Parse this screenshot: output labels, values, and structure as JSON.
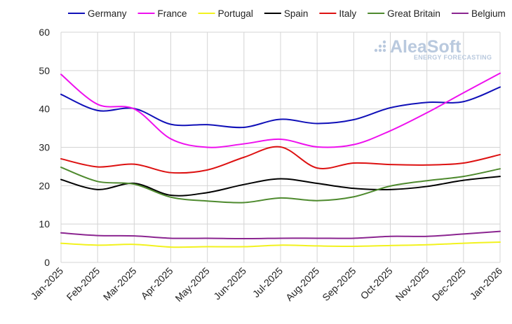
{
  "chart_data": {
    "type": "line",
    "categories": [
      "Jan-2025",
      "Feb-2025",
      "Mar-2025",
      "Apr-2025",
      "May-2025",
      "Jun-2025",
      "Jul-2025",
      "Aug-2025",
      "Sep-2025",
      "Oct-2025",
      "Nov-2025",
      "Dec-2025",
      "Jan-2026"
    ],
    "ylim": [
      0,
      60
    ],
    "yticks": [
      0,
      10,
      20,
      30,
      40,
      50,
      60
    ],
    "grid": true,
    "legend_position": "top",
    "series": [
      {
        "name": "Germany",
        "color": "#1010b8",
        "values": [
          43.8,
          39.6,
          40.1,
          36.0,
          35.9,
          35.2,
          37.3,
          36.2,
          37.2,
          40.3,
          41.7,
          41.9,
          45.7
        ]
      },
      {
        "name": "France",
        "color": "#ee10ee",
        "values": [
          49.0,
          41.2,
          40.0,
          32.2,
          30.0,
          30.9,
          32.1,
          30.1,
          30.7,
          34.3,
          39.0,
          44.2,
          49.3
        ]
      },
      {
        "name": "Portugal",
        "color": "#f2f21e",
        "values": [
          5.0,
          4.5,
          4.7,
          4.0,
          4.1,
          4.1,
          4.5,
          4.3,
          4.2,
          4.4,
          4.6,
          5.0,
          5.3
        ]
      },
      {
        "name": "Spain",
        "color": "#000000",
        "values": [
          21.6,
          19.0,
          20.6,
          17.5,
          18.2,
          20.3,
          21.8,
          20.6,
          19.3,
          19.0,
          19.8,
          21.4,
          22.4
        ]
      },
      {
        "name": "Italy",
        "color": "#dd1111",
        "values": [
          27.0,
          24.9,
          25.6,
          23.4,
          24.1,
          27.4,
          30.1,
          24.6,
          25.9,
          25.5,
          25.4,
          25.9,
          28.1
        ]
      },
      {
        "name": "Great Britain",
        "color": "#4e8a2e",
        "values": [
          24.8,
          21.1,
          20.4,
          17.0,
          16.0,
          15.6,
          16.8,
          16.1,
          17.1,
          19.9,
          21.3,
          22.4,
          24.4
        ]
      },
      {
        "name": "Belgium",
        "color": "#8b2590",
        "values": [
          7.7,
          7.0,
          6.9,
          6.3,
          6.3,
          6.2,
          6.3,
          6.3,
          6.3,
          6.8,
          6.8,
          7.4,
          8.1
        ]
      }
    ]
  },
  "watermark": {
    "main": "AleaSoft",
    "sub": "ENERGY FORECASTING"
  }
}
